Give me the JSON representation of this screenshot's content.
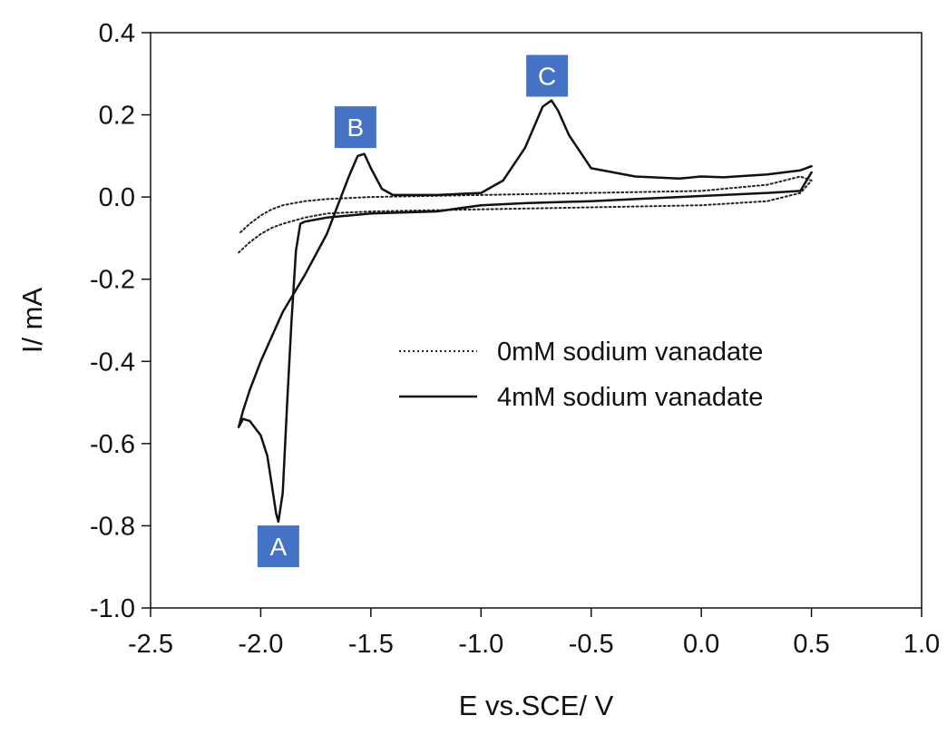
{
  "chart_data": {
    "type": "line",
    "title": "",
    "xlabel": "E vs.SCE/ V",
    "ylabel": "I/ mA",
    "xlim": [
      -2.5,
      1.0
    ],
    "ylim": [
      -1.0,
      0.4
    ],
    "xticks": [
      -2.5,
      -2.0,
      -1.5,
      -1.0,
      -0.5,
      0.0,
      0.5,
      1.0
    ],
    "xtick_labels": [
      "-2.5",
      "-2.0",
      "-1.5",
      "-1.0",
      "-0.5",
      "0.0",
      "0.5",
      "1.0"
    ],
    "yticks": [
      -1.0,
      -0.8,
      -0.6,
      -0.4,
      -0.2,
      0.0,
      0.2,
      0.4
    ],
    "ytick_labels": [
      "-1.0",
      "-0.8",
      "-0.6",
      "-0.4",
      "-0.2",
      "0.0",
      "0.2",
      "0.4"
    ],
    "grid": false,
    "legend_position": "center-right",
    "series": [
      {
        "name": "0mM sodium vanadate",
        "style": "dotted",
        "color": "#222222",
        "x": [
          -2.1,
          -2.05,
          -2.0,
          -1.95,
          -1.9,
          -1.8,
          -1.7,
          -1.5,
          -1.0,
          -0.5,
          0.0,
          0.3,
          0.45,
          0.5,
          0.45,
          0.3,
          0.0,
          -0.5,
          -1.0,
          -1.5,
          -1.7,
          -1.8,
          -1.9,
          -1.95,
          -2.0,
          -2.05,
          -2.1
        ],
        "y": [
          -0.135,
          -0.11,
          -0.09,
          -0.075,
          -0.065,
          -0.05,
          -0.04,
          -0.035,
          -0.03,
          -0.025,
          -0.02,
          -0.01,
          0.01,
          0.04,
          0.05,
          0.03,
          0.015,
          0.01,
          0.005,
          0.0,
          -0.005,
          -0.01,
          -0.02,
          -0.03,
          -0.045,
          -0.065,
          -0.09
        ]
      },
      {
        "name": "4mM sodium vanadate",
        "style": "solid",
        "color": "#111111",
        "x": [
          0.5,
          0.45,
          0.3,
          0.1,
          0.0,
          -0.1,
          -0.3,
          -0.5,
          -0.6,
          -0.65,
          -0.68,
          -0.72,
          -0.8,
          -0.9,
          -1.0,
          -1.2,
          -1.4,
          -1.45,
          -1.5,
          -1.53,
          -1.56,
          -1.6,
          -1.65,
          -1.7,
          -1.8,
          -1.9,
          -2.0,
          -2.05,
          -2.08,
          -2.1,
          -2.08,
          -2.05,
          -2.0,
          -1.97,
          -1.95,
          -1.93,
          -1.92,
          -1.9,
          -1.88,
          -1.86,
          -1.84,
          -1.82,
          -1.8,
          -1.75,
          -1.7,
          -1.5,
          -1.2,
          -1.0,
          -0.8,
          -0.5,
          -0.3,
          -0.1,
          0.1,
          0.3,
          0.45,
          0.5
        ],
        "y": [
          0.075,
          0.065,
          0.055,
          0.048,
          0.05,
          0.045,
          0.05,
          0.07,
          0.15,
          0.21,
          0.235,
          0.22,
          0.12,
          0.04,
          0.01,
          0.005,
          0.005,
          0.02,
          0.07,
          0.105,
          0.1,
          0.05,
          -0.02,
          -0.09,
          -0.19,
          -0.28,
          -0.4,
          -0.47,
          -0.52,
          -0.56,
          -0.54,
          -0.545,
          -0.58,
          -0.63,
          -0.7,
          -0.77,
          -0.79,
          -0.72,
          -0.5,
          -0.3,
          -0.13,
          -0.065,
          -0.06,
          -0.055,
          -0.05,
          -0.04,
          -0.035,
          -0.02,
          -0.015,
          -0.01,
          -0.005,
          0.0,
          0.005,
          0.01,
          0.015,
          0.06
        ]
      }
    ],
    "annotations": [
      {
        "text": "A",
        "x": -1.92,
        "y": -0.85
      },
      {
        "text": "B",
        "x": -1.57,
        "y": 0.17
      },
      {
        "text": "C",
        "x": -0.7,
        "y": 0.295
      }
    ],
    "annotation_bg": "#4472c4",
    "annotation_text_color": "#ffffff"
  }
}
